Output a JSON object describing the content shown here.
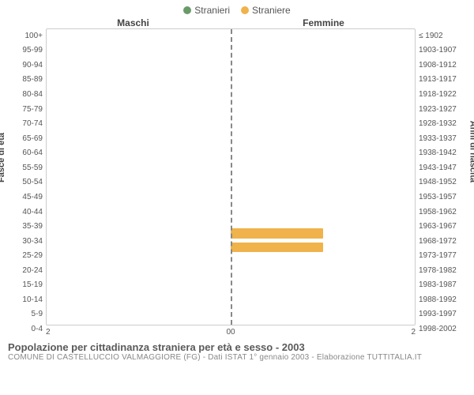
{
  "legend": {
    "male": {
      "label": "Stranieri",
      "color": "#6a9a6a"
    },
    "female": {
      "label": "Straniere",
      "color": "#f0b24a"
    }
  },
  "panels": {
    "left_title": "Maschi",
    "right_title": "Femmine"
  },
  "y_axis_left": {
    "label": "Fasce di età",
    "ticks": [
      "100+",
      "95-99",
      "90-94",
      "85-89",
      "80-84",
      "75-79",
      "70-74",
      "65-69",
      "60-64",
      "55-59",
      "50-54",
      "45-49",
      "40-44",
      "35-39",
      "30-34",
      "25-29",
      "20-24",
      "15-19",
      "10-14",
      "5-9",
      "0-4"
    ]
  },
  "y_axis_right": {
    "label": "Anni di nascita",
    "ticks": [
      "≤ 1902",
      "1903-1907",
      "1908-1912",
      "1913-1917",
      "1918-1922",
      "1923-1927",
      "1928-1932",
      "1933-1937",
      "1938-1942",
      "1943-1947",
      "1948-1952",
      "1953-1957",
      "1958-1962",
      "1963-1967",
      "1968-1972",
      "1973-1977",
      "1978-1982",
      "1983-1987",
      "1988-1992",
      "1993-1997",
      "1998-2002"
    ]
  },
  "x_axis": {
    "max": 2,
    "ticks_left": [
      "2",
      "0"
    ],
    "ticks_right": [
      "0",
      "2"
    ]
  },
  "data": {
    "male": [
      0,
      0,
      0,
      0,
      0,
      0,
      0,
      0,
      0,
      0,
      0,
      0,
      0,
      0,
      0,
      0,
      0,
      0,
      0,
      0,
      0
    ],
    "female": [
      0,
      0,
      0,
      0,
      0,
      0,
      0,
      0,
      0,
      0,
      0,
      0,
      0,
      0,
      1,
      1,
      0,
      0,
      0,
      0,
      0
    ]
  },
  "colors": {
    "male_bar": "#6a9a6a",
    "female_bar": "#f0b24a",
    "grid": "#cccccc",
    "divider": "#888888",
    "background": "#ffffff"
  },
  "footer": {
    "title": "Popolazione per cittadinanza straniera per età e sesso - 2003",
    "subtitle": "COMUNE DI CASTELLUCCIO VALMAGGIORE (FG) - Dati ISTAT 1° gennaio 2003 - Elaborazione TUTTITALIA.IT"
  }
}
